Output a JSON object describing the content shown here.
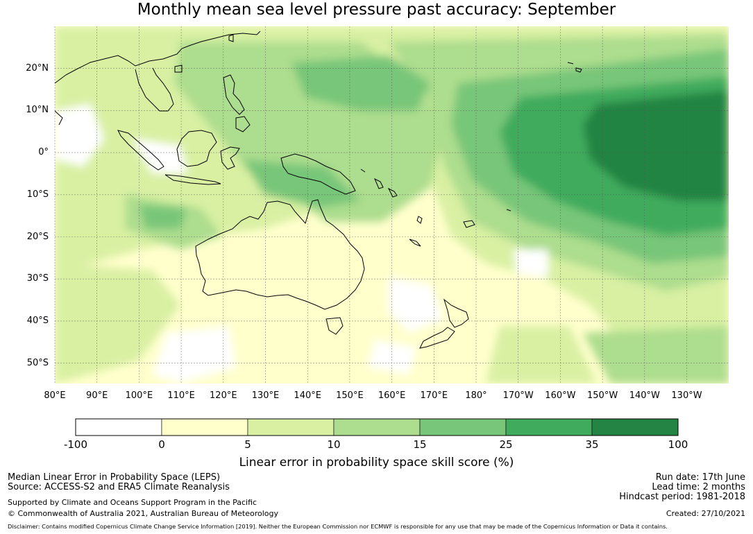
{
  "title": "Monthly mean sea level pressure past accuracy: September",
  "map": {
    "lat_labels": [
      "20°N",
      "10°N",
      "0°",
      "10°S",
      "20°S",
      "30°S",
      "40°S",
      "50°S"
    ],
    "lon_labels": [
      "80°E",
      "90°E",
      "100°E",
      "110°E",
      "120°E",
      "130°E",
      "140°E",
      "150°E",
      "160°E",
      "170°E",
      "180°",
      "170°W",
      "160°W",
      "150°W",
      "140°W",
      "130°W"
    ],
    "lat_range": [
      -55,
      30
    ],
    "lon_range": [
      80,
      240
    ],
    "field": "Median Linear Error in Probability Space skill score (%)"
  },
  "colorbar": {
    "label": "Linear error in probability space skill score (%)",
    "ticks": [
      "-100",
      "0",
      "5",
      "10",
      "15",
      "25",
      "35",
      "100"
    ],
    "colors": [
      "#ffffff",
      "#ffffcc",
      "#d9f0a3",
      "#addd8e",
      "#78c679",
      "#41ab5d",
      "#238443"
    ]
  },
  "footer": {
    "left1": "Median Linear Error in Probability Space (LEPS)",
    "left2": "Source: ACCESS-S2 and ERA5 Climate Reanalysis",
    "left3": "Supported by Climate and Oceans Support Program in the Pacific",
    "left4": "© Commonwealth of Australia 2021, Australian Bureau of Meteorology",
    "right1": "Run date: 17th June",
    "right2": "Lead time: 2 months",
    "right3": "Hindcast period: 1981-2018",
    "right4": "Created: 27/10/2021",
    "disclaimer": "Disclaimer: Contains modified Copernicus Climate Change Service Information [2019]. Neither the European Commission nor ECMWF is responsible for any use that may be made of the Copernicus Information or Data it contains."
  }
}
